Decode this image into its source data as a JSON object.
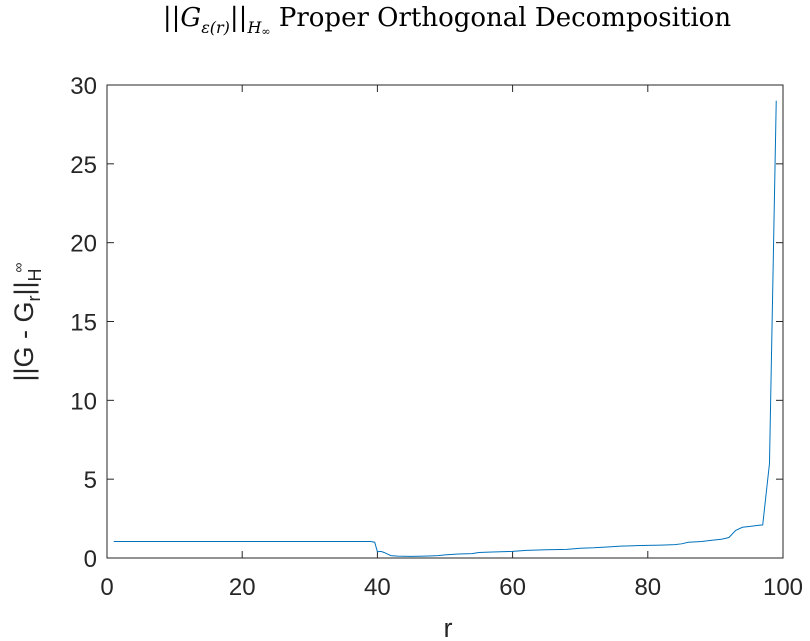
{
  "chart_data": {
    "type": "line",
    "title_parts": {
      "pre": "||G",
      "sub": "ε(r)",
      "mid": "||",
      "sub2": "H",
      "sub2sub": "∞",
      "post": " Proper Orthogonal Decomposition"
    },
    "xlabel": "r",
    "ylabel_parts": {
      "pre": "||G - G",
      "sub": "r",
      "mid": "||",
      "sub2": "H",
      "sub2sub": "∞"
    },
    "xlim": [
      0,
      100
    ],
    "ylim": [
      0,
      30
    ],
    "xticks": [
      0,
      20,
      40,
      60,
      80,
      100
    ],
    "yticks": [
      0,
      5,
      10,
      15,
      20,
      25,
      30
    ],
    "grid": false,
    "line_color": "#0072BD",
    "series": [
      {
        "x": [
          1,
          10,
          20,
          30,
          38,
          39,
          39.6,
          40,
          40.5,
          41,
          41.5,
          42,
          43,
          45,
          47,
          49,
          50,
          52,
          54,
          55,
          57,
          60,
          62,
          65,
          68,
          70,
          72,
          74,
          76,
          78,
          80,
          82,
          84,
          85,
          86,
          88,
          89,
          90,
          91,
          92,
          93,
          94,
          95,
          96,
          97,
          98,
          99
        ],
        "y": [
          1.05,
          1.05,
          1.05,
          1.05,
          1.05,
          1.05,
          1.0,
          0.4,
          0.42,
          0.35,
          0.25,
          0.15,
          0.12,
          0.1,
          0.12,
          0.15,
          0.2,
          0.25,
          0.28,
          0.35,
          0.38,
          0.42,
          0.48,
          0.52,
          0.55,
          0.62,
          0.65,
          0.7,
          0.75,
          0.78,
          0.8,
          0.82,
          0.85,
          0.9,
          1.0,
          1.05,
          1.1,
          1.15,
          1.2,
          1.3,
          1.75,
          1.95,
          2.0,
          2.05,
          2.1,
          6.0,
          29.0
        ]
      }
    ]
  }
}
